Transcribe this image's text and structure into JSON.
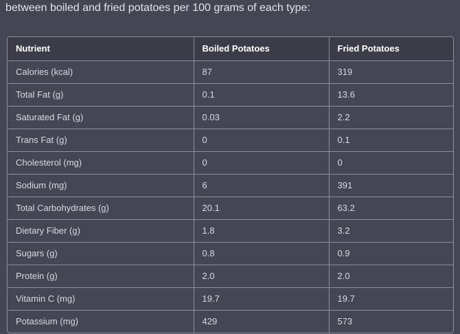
{
  "intro_text": "between boiled and fried potatoes per 100 grams of each type:",
  "table": {
    "headers": [
      "Nutrient",
      "Boiled Potatoes",
      "Fried Potatoes"
    ],
    "rows": [
      [
        "Calories (kcal)",
        "87",
        "319"
      ],
      [
        "Total Fat (g)",
        "0.1",
        "13.6"
      ],
      [
        "Saturated Fat (g)",
        "0.03",
        "2.2"
      ],
      [
        "Trans Fat (g)",
        "0",
        "0.1"
      ],
      [
        "Cholesterol (mg)",
        "0",
        "0"
      ],
      [
        "Sodium (mg)",
        "6",
        "391"
      ],
      [
        "Total Carbohydrates (g)",
        "20.1",
        "63.2"
      ],
      [
        "Dietary Fiber (g)",
        "1.8",
        "3.2"
      ],
      [
        "Sugars (g)",
        "0.8",
        "0.9"
      ],
      [
        "Protein (g)",
        "2.0",
        "2.0"
      ],
      [
        "Vitamin C (mg)",
        "19.7",
        "19.7"
      ],
      [
        "Potassium (mg)",
        "429",
        "573"
      ]
    ]
  },
  "colors": {
    "background": "#444654",
    "header_background": "#3b3c47",
    "border": "#8e8ea0",
    "text": "#d9d9e3"
  }
}
